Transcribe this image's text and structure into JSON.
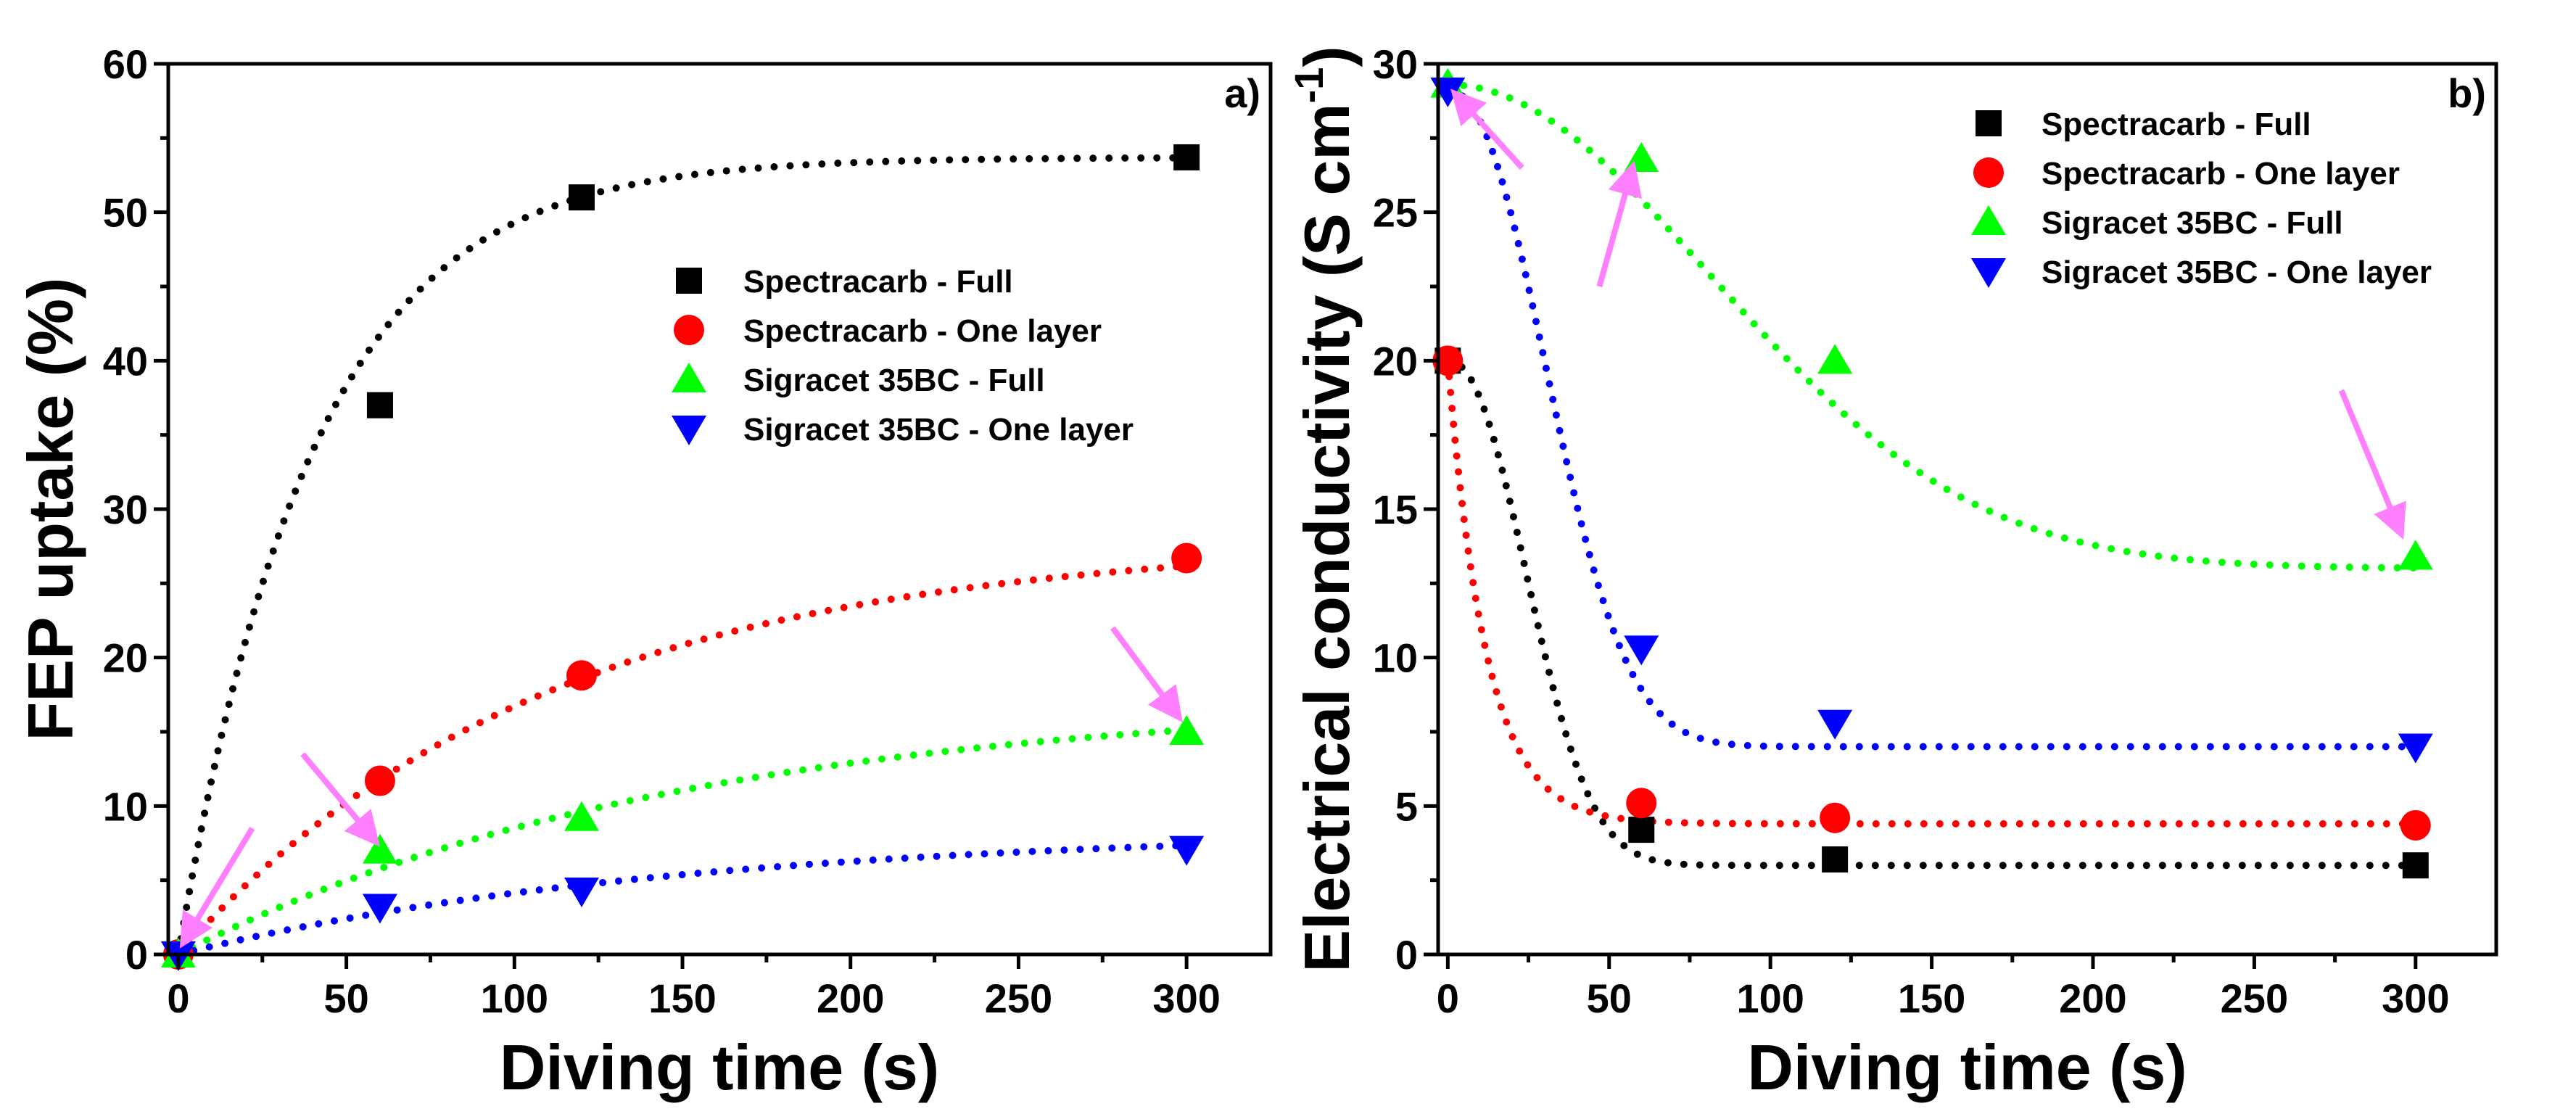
{
  "chart_data": [
    {
      "type": "scatter",
      "panel_label": "a)",
      "xlabel": "Diving time (s)",
      "ylabel": "FEP uptake (%)",
      "xlim": [
        -3,
        325
      ],
      "ylim": [
        0,
        60
      ],
      "xticks": [
        0,
        50,
        100,
        150,
        200,
        250,
        300
      ],
      "yticks": [
        0,
        10,
        20,
        30,
        40,
        50,
        60
      ],
      "legend_position": "center-right",
      "series": [
        {
          "name": "Spectracarb - Full",
          "marker": "square",
          "color": "#000000",
          "x": [
            0,
            60,
            120,
            300
          ],
          "y": [
            0,
            37,
            51,
            53.7
          ],
          "fit": {
            "a": 53.7,
            "tau": 40,
            "n": 1
          }
        },
        {
          "name": "Spectracarb - One layer",
          "marker": "circle",
          "color": "#ff0000",
          "x": [
            0,
            60,
            120,
            300
          ],
          "y": [
            0,
            11.7,
            18.8,
            26.7
          ],
          "fit": {
            "a": 28.0,
            "tau": 110,
            "n": 1
          }
        },
        {
          "name": "Sigracet 35BC - Full",
          "marker": "triangle-up",
          "color": "#00ff00",
          "x": [
            0,
            60,
            120,
            300
          ],
          "y": [
            0,
            7.0,
            9.2,
            15.0
          ],
          "fit": {
            "a": 17.5,
            "tau": 150,
            "n": 1
          }
        },
        {
          "name": "Sigracet 35BC - One layer",
          "marker": "triangle-down",
          "color": "#0000ff",
          "x": [
            0,
            60,
            120,
            300
          ],
          "y": [
            0,
            3.2,
            4.3,
            7.1
          ],
          "fit": {
            "a": 8.5,
            "tau": 150,
            "n": 1
          }
        }
      ],
      "arrows": [
        {
          "from": [
            22,
            8.5
          ],
          "to": [
            2,
            1.0
          ]
        },
        {
          "from": [
            37,
            13.5
          ],
          "to": [
            58,
            7.8
          ]
        },
        {
          "from": [
            278,
            22
          ],
          "to": [
            297,
            16.2
          ]
        }
      ]
    },
    {
      "type": "scatter",
      "panel_label": "b)",
      "xlabel": "Diving time (s)",
      "ylabel": "Electrical conductivity (S cm",
      "ylabel_sup": "-1",
      "ylabel_close": ")",
      "xlim": [
        -3,
        325
      ],
      "ylim": [
        0,
        30
      ],
      "xticks": [
        0,
        50,
        100,
        150,
        200,
        250,
        300
      ],
      "yticks": [
        0,
        5,
        10,
        15,
        20,
        25,
        30
      ],
      "legend_position": "top-right",
      "series": [
        {
          "name": "Spectracarb - Full",
          "marker": "square",
          "color": "#000000",
          "x": [
            0,
            60,
            120,
            300
          ],
          "y": [
            20,
            4.2,
            3.2,
            3.0
          ],
          "fit": {
            "a": 17.0,
            "c": 3.0,
            "tau": 32,
            "n": 2.2
          }
        },
        {
          "name": "Spectracarb - One layer",
          "marker": "circle",
          "color": "#ff0000",
          "x": [
            0,
            60,
            120,
            300
          ],
          "y": [
            20,
            5.1,
            4.6,
            4.35
          ],
          "fit": {
            "a": 15.6,
            "c": 4.4,
            "tau": 12,
            "n": 1
          }
        },
        {
          "name": "Sigracet 35BC - Full",
          "marker": "triangle-up",
          "color": "#00ff00",
          "x": [
            0,
            60,
            120,
            300
          ],
          "y": [
            29.3,
            26.8,
            20.0,
            13.4
          ],
          "fit": {
            "a": 16.3,
            "c": 13.0,
            "tau": 115,
            "n": 2
          }
        },
        {
          "name": "Sigracet 35BC - One layer",
          "marker": "triangle-down",
          "color": "#0000ff",
          "x": [
            0,
            60,
            120,
            300
          ],
          "y": [
            29.1,
            10.3,
            7.8,
            7.0
          ],
          "fit": {
            "a": 22.1,
            "c": 7.0,
            "tau": 40,
            "n": 2.2
          }
        }
      ],
      "arrows": [
        {
          "from": [
            23,
            26.5
          ],
          "to": [
            3,
            28.9
          ]
        },
        {
          "from": [
            47,
            22.5
          ],
          "to": [
            57,
            26.4
          ]
        },
        {
          "from": [
            277,
            19
          ],
          "to": [
            295,
            14.3
          ]
        }
      ]
    }
  ]
}
